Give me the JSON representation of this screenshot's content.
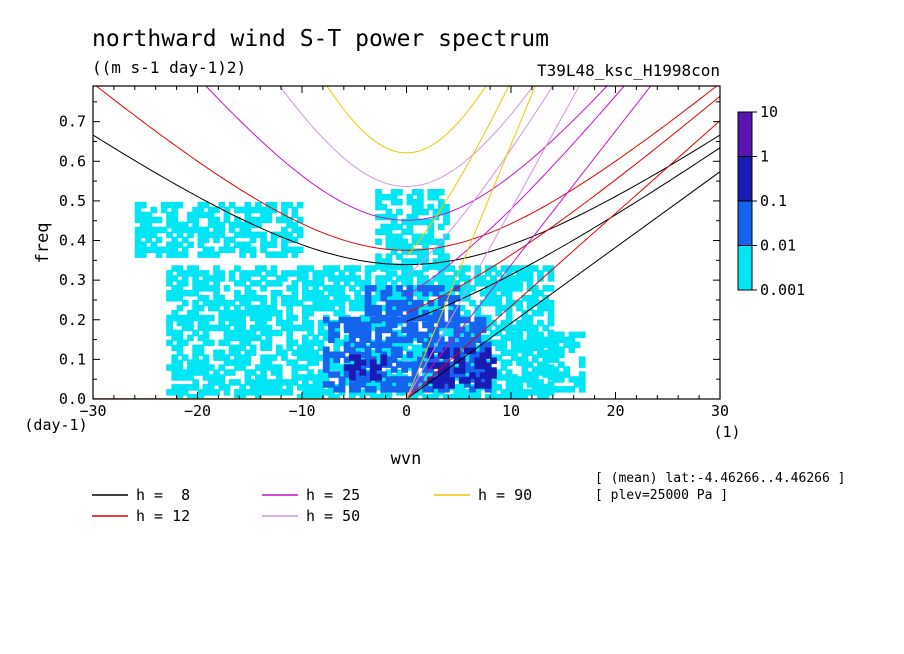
{
  "title": "northward wind S-T power spectrum",
  "units": "((m s-1 day-1)2)",
  "experiment": "T39L48_ksc_H1998con",
  "info_lines": [
    "[ (mean) lat:-4.46266..4.46266 ]",
    "[ plev=25000 Pa ]"
  ],
  "chart_data": {
    "type": "heatmap",
    "xlabel": "wvn",
    "ylabel": "freq",
    "x_unit_label": "(1)",
    "y_unit_label": "(day-1)",
    "xlim": [
      -30,
      30
    ],
    "ylim": [
      0,
      0.8
    ],
    "x_ticks": [
      "-30",
      "-20",
      "-10",
      "0",
      "10",
      "20",
      "30"
    ],
    "y_ticks": [
      "0.0",
      "0.1",
      "0.2",
      "0.3",
      "0.4",
      "0.5",
      "0.6",
      "0.7"
    ],
    "colorbar": {
      "labels": [
        "10",
        "1",
        "0.1",
        "0.01",
        "0.001"
      ],
      "colors": [
        "#5a14b4",
        "#1a1ab4",
        "#1464f0",
        "#00e6f5"
      ]
    },
    "dispersion_curves": [
      {
        "label": "h =  8",
        "h": 8,
        "color": "#000000"
      },
      {
        "label": "h = 12",
        "h": 12,
        "color": "#e60000"
      },
      {
        "label": "h = 25",
        "h": 25,
        "color": "#c814c8"
      },
      {
        "label": "h = 50",
        "h": 50,
        "color": "#d296e6"
      },
      {
        "label": "h = 90",
        "h": 90,
        "color": "#f0c800"
      }
    ],
    "field_regions": [
      {
        "level": 1,
        "x0": -23,
        "x1": 14,
        "y0": 0.0,
        "y1": 0.33
      },
      {
        "level": 1,
        "x0": -26,
        "x1": -10,
        "y0": 0.36,
        "y1": 0.49
      },
      {
        "level": 1,
        "x0": -3,
        "x1": 4,
        "y0": 0.33,
        "y1": 0.53
      },
      {
        "level": 1,
        "x0": 10,
        "x1": 17,
        "y0": 0.02,
        "y1": 0.16
      },
      {
        "level": 2,
        "x0": -8,
        "x1": 8,
        "y0": 0.02,
        "y1": 0.2
      },
      {
        "level": 2,
        "x0": -4,
        "x1": 5,
        "y0": 0.2,
        "y1": 0.28
      },
      {
        "level": 3,
        "x0": 2,
        "x1": 9,
        "y0": 0.03,
        "y1": 0.12
      },
      {
        "level": 3,
        "x0": -6,
        "x1": -2,
        "y0": 0.05,
        "y1": 0.1
      }
    ]
  }
}
